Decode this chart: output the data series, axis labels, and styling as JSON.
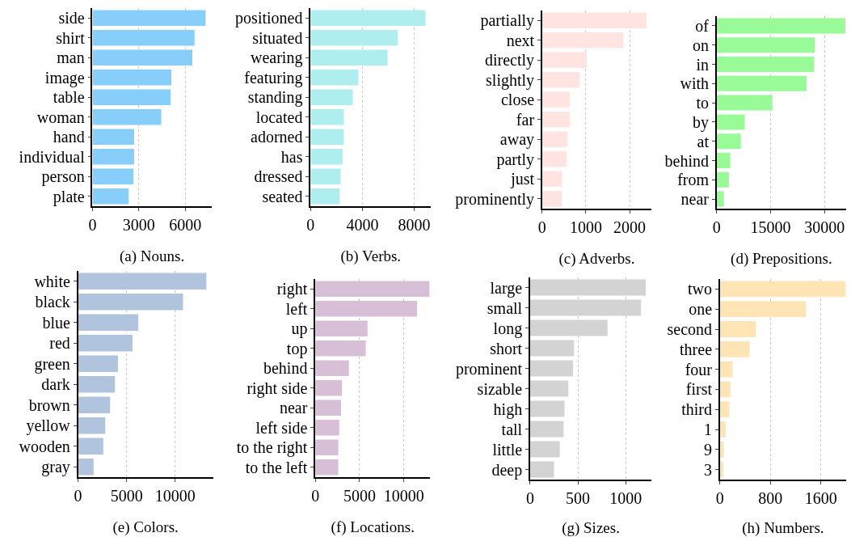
{
  "chart_data": [
    {
      "type": "bar",
      "orientation": "horizontal",
      "xlabel": "(a) Nouns.",
      "categories": [
        "side",
        "shirt",
        "man",
        "image",
        "table",
        "woman",
        "hand",
        "individual",
        "person",
        "plate"
      ],
      "values": [
        7310,
        6600,
        6460,
        5100,
        5050,
        4440,
        2690,
        2690,
        2640,
        2330
      ],
      "color": "#87cefa",
      "xlim": [
        0,
        7700
      ],
      "xticks": [
        0,
        3000,
        6000
      ],
      "grid": "x"
    },
    {
      "type": "bar",
      "orientation": "horizontal",
      "xlabel": "(b) Verbs.",
      "categories": [
        "positioned",
        "situated",
        "wearing",
        "featuring",
        "standing",
        "located",
        "adorned",
        "has",
        "dressed",
        "seated"
      ],
      "values": [
        8860,
        6740,
        5940,
        3680,
        3260,
        2570,
        2570,
        2480,
        2320,
        2250
      ],
      "color": "#afeeee",
      "xlim": [
        0,
        9300
      ],
      "xticks": [
        0,
        4000,
        8000
      ],
      "grid": "x"
    },
    {
      "type": "bar",
      "orientation": "horizontal",
      "xlabel": "(c) Adverbs.",
      "categories": [
        "partially",
        "next",
        "directly",
        "slightly",
        "close",
        "far",
        "away",
        "partly",
        "just",
        "prominently"
      ],
      "values": [
        2390,
        1860,
        1020,
        860,
        630,
        630,
        580,
        560,
        450,
        450
      ],
      "color": "#ffe4e1",
      "xlim": [
        0,
        2500
      ],
      "xticks": [
        0,
        1000,
        2000
      ],
      "grid": "x"
    },
    {
      "type": "bar",
      "orientation": "horizontal",
      "xlabel": "(d) Prepositions.",
      "categories": [
        "of",
        "on",
        "in",
        "with",
        "to",
        "by",
        "at",
        "behind",
        "from",
        "near"
      ],
      "values": [
        35800,
        27300,
        27000,
        25000,
        15500,
        7800,
        6700,
        3800,
        3400,
        2000
      ],
      "color": "#98fb98",
      "xlim": [
        0,
        36000
      ],
      "xticks": [
        0,
        15000,
        30000
      ],
      "grid": "x"
    },
    {
      "type": "bar",
      "orientation": "horizontal",
      "xlabel": "(e) Colors.",
      "categories": [
        "white",
        "black",
        "blue",
        "red",
        "green",
        "dark",
        "brown",
        "yellow",
        "wooden",
        "gray"
      ],
      "values": [
        13200,
        10800,
        6200,
        5600,
        4100,
        3800,
        3300,
        2800,
        2600,
        1600
      ],
      "color": "#b0c4de",
      "xlim": [
        0,
        13900
      ],
      "xticks": [
        0,
        5000,
        10000
      ],
      "grid": "x"
    },
    {
      "type": "bar",
      "orientation": "horizontal",
      "xlabel": "(f) Locations.",
      "categories": [
        "right",
        "left",
        "up",
        "top",
        "behind",
        "right side",
        "near",
        "left side",
        "to the right",
        "to the left"
      ],
      "values": [
        12900,
        11500,
        5900,
        5700,
        3800,
        3000,
        2900,
        2700,
        2600,
        2600
      ],
      "color": "#d8bfd8",
      "xlim": [
        0,
        13000
      ],
      "xticks": [
        0,
        5000,
        10000
      ],
      "grid": "x"
    },
    {
      "type": "bar",
      "orientation": "horizontal",
      "xlabel": "(g) Sizes.",
      "categories": [
        "large",
        "small",
        "long",
        "short",
        "prominent",
        "sizable",
        "high",
        "tall",
        "little",
        "deep"
      ],
      "values": [
        1210,
        1160,
        810,
        460,
        450,
        400,
        360,
        350,
        310,
        250
      ],
      "color": "#d3d3d3",
      "xlim": [
        0,
        1270
      ],
      "xticks": [
        0,
        500,
        1000
      ],
      "grid": "x"
    },
    {
      "type": "bar",
      "orientation": "horizontal",
      "xlabel": "(h) Numbers.",
      "categories": [
        "two",
        "one",
        "second",
        "three",
        "four",
        "first",
        "third",
        "1",
        "9",
        "3"
      ],
      "values": [
        1990,
        1360,
        570,
        470,
        200,
        170,
        150,
        90,
        60,
        50
      ],
      "color": "#ffe4b5",
      "xlim": [
        0,
        2000
      ],
      "xticks": [
        0,
        800,
        1600
      ],
      "grid": "x"
    }
  ]
}
